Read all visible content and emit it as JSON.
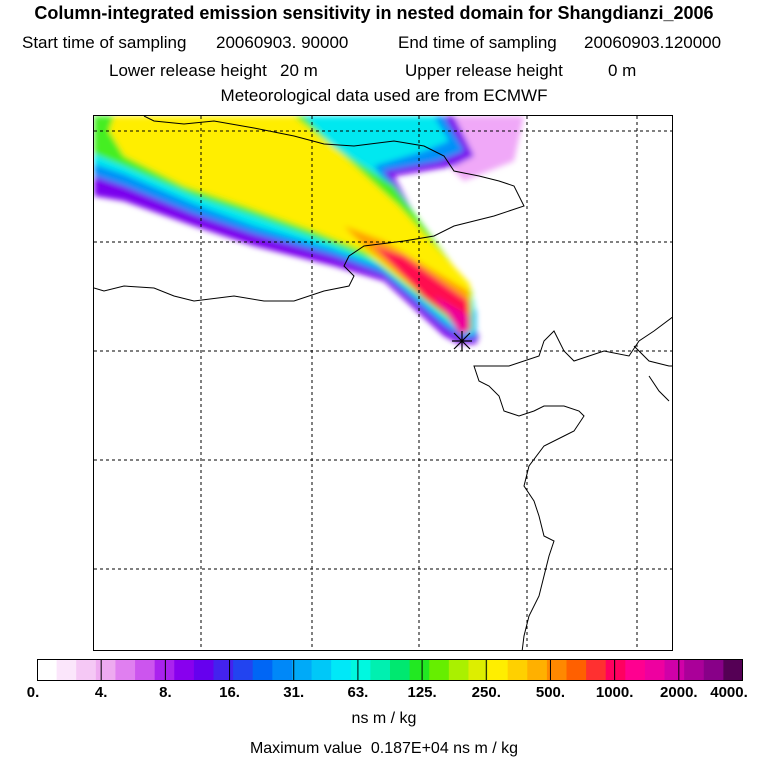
{
  "header": {
    "title": "Column-integrated emission sensitivity in nested domain for Shangdianzi_2006",
    "start_label": "Start time of sampling",
    "start_value": "20060903. 90000",
    "end_label": "End time of sampling",
    "end_value": "20060903.120000",
    "lower_label": "Lower release height",
    "lower_value": "20 m",
    "upper_label": "Upper release height",
    "upper_value": "0 m",
    "met_line": "Meteorological data used are from ECMWF"
  },
  "colorbar": {
    "tick_labels": [
      "0.",
      "4.",
      "8.",
      "16.",
      "31.",
      "63.",
      "125.",
      "250.",
      "500.",
      "1000.",
      "2000.",
      "4000."
    ],
    "colors": [
      "#ffffff",
      "#fbe6fb",
      "#f5c8f5",
      "#eeaaf0",
      "#e07ff0",
      "#cc55ee",
      "#aa22ee",
      "#8800ee",
      "#6600ee",
      "#4422ee",
      "#2244f0",
      "#0066f5",
      "#0088f8",
      "#00aaf8",
      "#00c8f8",
      "#00e8f8",
      "#00f8e0",
      "#00f0b0",
      "#00e870",
      "#22e822",
      "#66ee00",
      "#aaf000",
      "#ddee00",
      "#ffee00",
      "#ffd000",
      "#ffb000",
      "#ff8800",
      "#ff6000",
      "#ff3030",
      "#ff0060",
      "#ff0090",
      "#ee00a0",
      "#d000a8",
      "#aa0099",
      "#880088",
      "#550055"
    ],
    "units": "ns m / kg",
    "max_label": "Maximum value",
    "max_value": "0.187E+04 ns m / kg"
  },
  "map": {
    "receptor_marker": "star-marker",
    "plume_colors": {
      "outer": "#7a00ee",
      "blue": "#0090f8",
      "cyan": "#00e8f0",
      "green": "#44ee20",
      "yellow": "#ffee00",
      "orange": "#ffa000",
      "red": "#ff1050",
      "magenta": "#ee0099",
      "pink": "#f0a8f8"
    }
  }
}
